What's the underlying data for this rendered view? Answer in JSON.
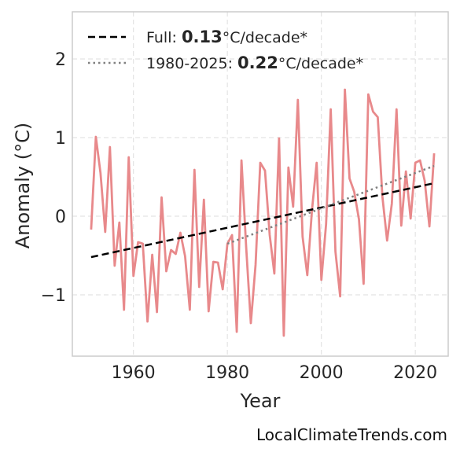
{
  "chart_data": {
    "type": "line",
    "xlabel": "Year",
    "ylabel": "Anomaly (°C)",
    "xlim": [
      1947,
      2027
    ],
    "ylim": [
      -1.78,
      2.6
    ],
    "xticks": [
      1960,
      1980,
      2000,
      2020
    ],
    "yticks": [
      -1,
      0,
      1,
      2
    ],
    "ytick_labels": [
      "−1",
      "0",
      "1",
      "2"
    ],
    "grid": true,
    "legend_position": "top-left",
    "series": [
      {
        "role": "anomaly",
        "color": "#e8898b",
        "x": [
          1951,
          1952,
          1953,
          1954,
          1955,
          1956,
          1957,
          1958,
          1959,
          1960,
          1961,
          1962,
          1963,
          1964,
          1965,
          1966,
          1967,
          1968,
          1969,
          1970,
          1971,
          1972,
          1973,
          1974,
          1975,
          1976,
          1977,
          1978,
          1979,
          1980,
          1981,
          1982,
          1983,
          1984,
          1985,
          1986,
          1987,
          1988,
          1989,
          1990,
          1991,
          1992,
          1993,
          1994,
          1995,
          1996,
          1997,
          1998,
          1999,
          2000,
          2001,
          2002,
          2003,
          2004,
          2005,
          2006,
          2007,
          2008,
          2009,
          2010,
          2011,
          2012,
          2013,
          2014,
          2015,
          2016,
          2017,
          2018,
          2019,
          2020,
          2021,
          2022,
          2023,
          2024
        ],
        "y": [
          -0.17,
          1.01,
          0.55,
          -0.2,
          0.88,
          -0.63,
          -0.08,
          -1.19,
          0.75,
          -0.76,
          -0.33,
          -0.35,
          -1.34,
          -0.49,
          -1.22,
          0.24,
          -0.7,
          -0.43,
          -0.48,
          -0.21,
          -0.51,
          -1.19,
          0.59,
          -0.9,
          0.21,
          -1.21,
          -0.58,
          -0.59,
          -0.93,
          -0.35,
          -0.24,
          -1.47,
          0.71,
          -0.4,
          -1.36,
          -0.62,
          0.68,
          0.58,
          -0.24,
          -0.73,
          0.99,
          -1.52,
          0.62,
          0.12,
          1.48,
          -0.26,
          -0.75,
          0.07,
          0.68,
          -0.81,
          -0.1,
          1.36,
          -0.45,
          -1.02,
          1.61,
          0.48,
          0.31,
          -0.04,
          -0.86,
          1.55,
          1.33,
          1.26,
          0.25,
          -0.31,
          0.16,
          1.36,
          -0.12,
          0.57,
          -0.03,
          0.68,
          0.71,
          0.45,
          -0.13,
          0.8
        ]
      },
      {
        "role": "trend-full",
        "color": "#000000",
        "style": "dashed",
        "x": [
          1951,
          2024
        ],
        "y": [
          -0.52,
          0.42
        ]
      },
      {
        "role": "trend-recent",
        "color": "#808080",
        "style": "dotted",
        "x": [
          1980,
          2024
        ],
        "y": [
          -0.35,
          0.64
        ]
      }
    ],
    "legend": [
      {
        "prefix": "Full: ",
        "value": "0.13",
        "suffix": "°C/decade*"
      },
      {
        "prefix": "1980-2025: ",
        "value": "0.22",
        "suffix": "°C/decade*"
      }
    ],
    "watermark": "LocalClimateTrends.com"
  }
}
